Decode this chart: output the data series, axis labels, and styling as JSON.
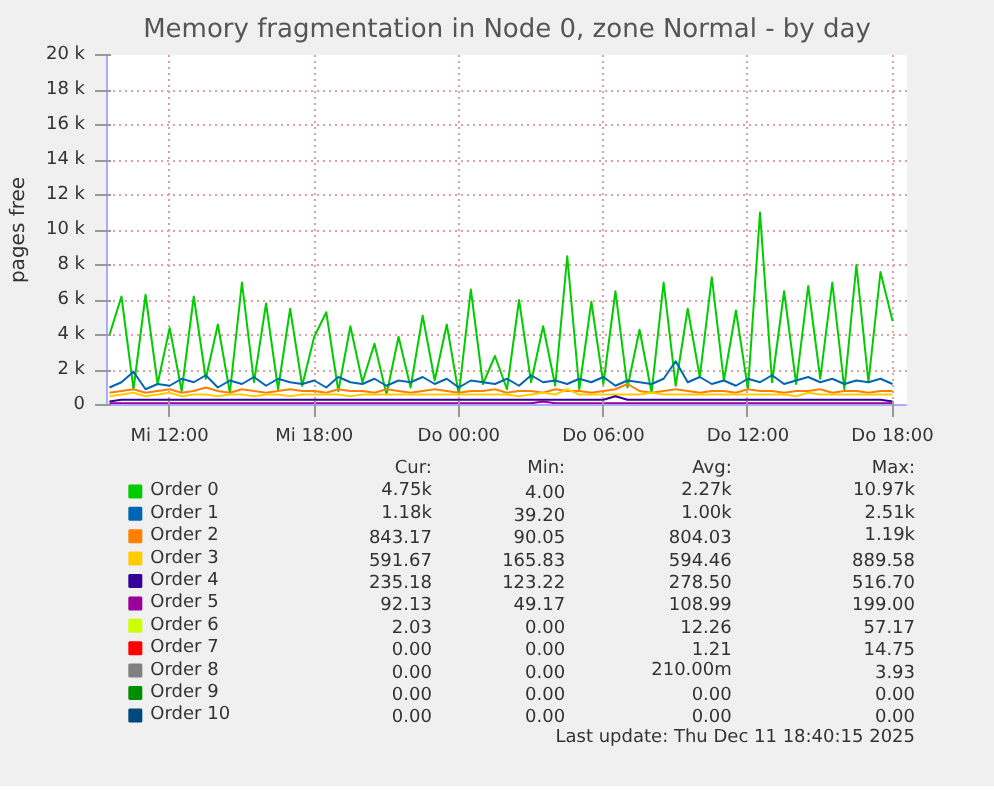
{
  "chart_data": {
    "type": "line",
    "title": "Memory fragmentation in Node 0, zone Normal - by day",
    "ylabel": "pages free",
    "x": [
      "2025-12-10T09:30",
      "2025-12-10T10:00",
      "2025-12-10T10:30",
      "2025-12-10T11:00",
      "2025-12-10T11:30",
      "2025-12-10T12:00",
      "2025-12-10T12:30",
      "2025-12-10T13:00",
      "2025-12-10T13:30",
      "2025-12-10T14:00",
      "2025-12-10T14:30",
      "2025-12-10T15:00",
      "2025-12-10T15:30",
      "2025-12-10T16:00",
      "2025-12-10T16:30",
      "2025-12-10T17:00",
      "2025-12-10T17:30",
      "2025-12-10T18:00",
      "2025-12-10T18:30",
      "2025-12-10T19:00",
      "2025-12-10T19:30",
      "2025-12-10T20:00",
      "2025-12-10T20:30",
      "2025-12-10T21:00",
      "2025-12-10T21:30",
      "2025-12-10T22:00",
      "2025-12-10T22:30",
      "2025-12-10T23:00",
      "2025-12-10T23:30",
      "2025-12-11T00:00",
      "2025-12-11T00:30",
      "2025-12-11T01:00",
      "2025-12-11T01:30",
      "2025-12-11T02:00",
      "2025-12-11T02:30",
      "2025-12-11T03:00",
      "2025-12-11T03:30",
      "2025-12-11T04:00",
      "2025-12-11T04:30",
      "2025-12-11T05:00",
      "2025-12-11T05:30",
      "2025-12-11T06:00",
      "2025-12-11T06:30",
      "2025-12-11T07:00",
      "2025-12-11T07:30",
      "2025-12-11T08:00",
      "2025-12-11T08:30",
      "2025-12-11T09:00",
      "2025-12-11T09:30",
      "2025-12-11T10:00",
      "2025-12-11T10:30",
      "2025-12-11T11:00",
      "2025-12-11T11:30",
      "2025-12-11T12:00",
      "2025-12-11T12:30",
      "2025-12-11T13:00",
      "2025-12-11T13:30",
      "2025-12-11T14:00",
      "2025-12-11T14:30",
      "2025-12-11T15:00",
      "2025-12-11T15:30",
      "2025-12-11T16:00",
      "2025-12-11T16:30",
      "2025-12-11T17:00",
      "2025-12-11T17:30",
      "2025-12-11T18:00"
    ],
    "xlim": [
      "2025-12-10T09:24",
      "2025-12-11T18:36"
    ],
    "ylim": [
      0,
      20000
    ],
    "xticks": [
      {
        "value": "2025-12-10T12:00",
        "label": "Mi 12:00"
      },
      {
        "value": "2025-12-10T18:00",
        "label": "Mi 18:00"
      },
      {
        "value": "2025-12-11T00:00",
        "label": "Do 00:00"
      },
      {
        "value": "2025-12-11T06:00",
        "label": "Do 06:00"
      },
      {
        "value": "2025-12-11T12:00",
        "label": "Do 12:00"
      },
      {
        "value": "2025-12-11T18:00",
        "label": "Do 18:00"
      }
    ],
    "yticks": [
      {
        "value": 0,
        "label": "0"
      },
      {
        "value": 2000,
        "label": "2 k"
      },
      {
        "value": 4000,
        "label": "4 k"
      },
      {
        "value": 6000,
        "label": "6 k"
      },
      {
        "value": 8000,
        "label": "8 k"
      },
      {
        "value": 10000,
        "label": "10 k"
      },
      {
        "value": 12000,
        "label": "12 k"
      },
      {
        "value": 14000,
        "label": "14 k"
      },
      {
        "value": 16000,
        "label": "16 k"
      },
      {
        "value": 18000,
        "label": "18 k"
      },
      {
        "value": 20000,
        "label": "20 k"
      }
    ],
    "grid": true,
    "legend": "bottom",
    "line_style": "solid",
    "marker": "none",
    "series": [
      {
        "name": "Order 0",
        "color": "#00cc00",
        "values": [
          4000,
          6200,
          900,
          6300,
          1200,
          4400,
          800,
          6200,
          1500,
          4600,
          700,
          7000,
          1300,
          5800,
          900,
          5500,
          1100,
          3900,
          5300,
          800,
          4500,
          1300,
          3500,
          600,
          3900,
          1000,
          5100,
          1400,
          4600,
          600,
          6600,
          1200,
          2800,
          900,
          6000,
          1300,
          4500,
          1100,
          8500,
          900,
          5900,
          1200,
          6500,
          1000,
          4300,
          700,
          7000,
          1100,
          5500,
          1600,
          7300,
          1400,
          5400,
          900,
          11000,
          1300,
          6500,
          1200,
          6800,
          1500,
          7000,
          900,
          8000,
          1300,
          7600,
          4800
        ]
      },
      {
        "name": "Order 1",
        "color": "#0066b3",
        "values": [
          1000,
          1300,
          1900,
          900,
          1200,
          1100,
          1500,
          1300,
          1700,
          1000,
          1400,
          1200,
          1600,
          1100,
          1500,
          1300,
          1200,
          1400,
          1000,
          1600,
          1300,
          1200,
          1500,
          1100,
          1400,
          1300,
          1600,
          1200,
          1500,
          1000,
          1400,
          1300,
          1200,
          1500,
          1100,
          1700,
          1300,
          1400,
          1200,
          1500,
          1300,
          1600,
          1100,
          1400,
          1300,
          1200,
          1500,
          2500,
          1300,
          1600,
          1200,
          1400,
          1100,
          1500,
          1300,
          1700,
          1200,
          1400,
          1600,
          1300,
          1500,
          1200,
          1400,
          1300,
          1500,
          1200
        ]
      },
      {
        "name": "Order 2",
        "color": "#ff8000",
        "values": [
          700,
          800,
          900,
          700,
          800,
          900,
          700,
          800,
          1000,
          800,
          700,
          900,
          800,
          700,
          800,
          900,
          800,
          800,
          700,
          900,
          800,
          800,
          700,
          900,
          800,
          700,
          800,
          900,
          800,
          700,
          800,
          800,
          900,
          700,
          800,
          800,
          700,
          900,
          800,
          800,
          700,
          800,
          900,
          1200,
          800,
          700,
          800,
          900,
          800,
          700,
          800,
          800,
          700,
          900,
          800,
          800,
          700,
          800,
          800,
          900,
          700,
          800,
          800,
          700,
          800,
          800
        ]
      },
      {
        "name": "Order 3",
        "color": "#ffcc00",
        "values": [
          500,
          600,
          700,
          500,
          600,
          700,
          500,
          600,
          600,
          500,
          600,
          600,
          500,
          600,
          600,
          500,
          600,
          600,
          600,
          600,
          500,
          600,
          600,
          600,
          600,
          600,
          600,
          600,
          600,
          600,
          600,
          600,
          600,
          600,
          500,
          600,
          700,
          600,
          900,
          600,
          600,
          600,
          600,
          600,
          600,
          700,
          600,
          600,
          600,
          600,
          600,
          600,
          600,
          600,
          600,
          600,
          600,
          500,
          700,
          600,
          600,
          600,
          600,
          600,
          600,
          600
        ]
      },
      {
        "name": "Order 4",
        "color": "#330099",
        "values": [
          200,
          300,
          300,
          300,
          300,
          300,
          300,
          300,
          300,
          300,
          300,
          300,
          300,
          300,
          300,
          300,
          300,
          300,
          300,
          300,
          300,
          300,
          300,
          300,
          300,
          300,
          300,
          300,
          300,
          300,
          300,
          300,
          300,
          300,
          300,
          300,
          300,
          300,
          300,
          300,
          300,
          300,
          500,
          300,
          300,
          300,
          300,
          300,
          300,
          300,
          300,
          300,
          300,
          300,
          300,
          300,
          300,
          300,
          300,
          300,
          300,
          300,
          300,
          300,
          300,
          200
        ]
      },
      {
        "name": "Order 5",
        "color": "#990099",
        "values": [
          100,
          100,
          100,
          100,
          100,
          100,
          100,
          100,
          100,
          100,
          100,
          100,
          100,
          100,
          100,
          100,
          100,
          100,
          100,
          100,
          100,
          100,
          100,
          100,
          100,
          100,
          100,
          100,
          100,
          100,
          100,
          100,
          100,
          100,
          100,
          100,
          200,
          100,
          100,
          100,
          100,
          100,
          100,
          100,
          100,
          100,
          100,
          100,
          100,
          100,
          100,
          100,
          100,
          100,
          100,
          100,
          100,
          100,
          100,
          100,
          100,
          100,
          100,
          100,
          100,
          100
        ]
      },
      {
        "name": "Order 6",
        "color": "#ccff00",
        "values": [
          null,
          null,
          null,
          null,
          null,
          null,
          null,
          null,
          null,
          null,
          null,
          null,
          null,
          null,
          null,
          null,
          null,
          null,
          null,
          null,
          null,
          null,
          null,
          null,
          null,
          null,
          null,
          null,
          null,
          null,
          null,
          null,
          null,
          null,
          null,
          null,
          null,
          null,
          null,
          null,
          null,
          null,
          null,
          null,
          null,
          null,
          null,
          null,
          null,
          null,
          null,
          null,
          null,
          null,
          null,
          null,
          null,
          null,
          null,
          null,
          null,
          null,
          null,
          null,
          null,
          null
        ]
      },
      {
        "name": "Order 7",
        "color": "#ff0000",
        "values": [
          null,
          null,
          null,
          null,
          null,
          null,
          null,
          null,
          null,
          null,
          null,
          null,
          null,
          null,
          null,
          null,
          null,
          null,
          null,
          null,
          null,
          null,
          null,
          null,
          null,
          null,
          null,
          null,
          null,
          null,
          null,
          null,
          null,
          null,
          null,
          null,
          null,
          null,
          null,
          null,
          null,
          null,
          null,
          null,
          null,
          null,
          null,
          null,
          null,
          null,
          null,
          null,
          null,
          null,
          null,
          null,
          null,
          null,
          null,
          null,
          null,
          null,
          null,
          null,
          null,
          null
        ]
      },
      {
        "name": "Order 8",
        "color": "#808080",
        "values": [
          null,
          null,
          null,
          null,
          null,
          null,
          null,
          null,
          null,
          null,
          null,
          null,
          null,
          null,
          null,
          null,
          null,
          null,
          null,
          null,
          null,
          null,
          null,
          null,
          null,
          null,
          null,
          null,
          null,
          null,
          null,
          null,
          null,
          null,
          null,
          null,
          null,
          null,
          null,
          null,
          null,
          null,
          null,
          null,
          null,
          null,
          null,
          null,
          null,
          null,
          null,
          null,
          null,
          null,
          null,
          null,
          null,
          null,
          null,
          null,
          null,
          null,
          null,
          null,
          null,
          null
        ]
      },
      {
        "name": "Order 9",
        "color": "#008f00",
        "values": [
          null,
          null,
          null,
          null,
          null,
          null,
          null,
          null,
          null,
          null,
          null,
          null,
          null,
          null,
          null,
          null,
          null,
          null,
          null,
          null,
          null,
          null,
          null,
          null,
          null,
          null,
          null,
          null,
          null,
          null,
          null,
          null,
          null,
          null,
          null,
          null,
          null,
          null,
          null,
          null,
          null,
          null,
          null,
          null,
          null,
          null,
          null,
          null,
          null,
          null,
          null,
          null,
          null,
          null,
          null,
          null,
          null,
          null,
          null,
          null,
          null,
          null,
          null,
          null,
          null,
          null
        ]
      },
      {
        "name": "Order 10",
        "color": "#00487d",
        "values": [
          null,
          null,
          null,
          null,
          null,
          null,
          null,
          null,
          null,
          null,
          null,
          null,
          null,
          null,
          null,
          null,
          null,
          null,
          null,
          null,
          null,
          null,
          null,
          null,
          null,
          null,
          null,
          null,
          null,
          null,
          null,
          null,
          null,
          null,
          null,
          null,
          null,
          null,
          null,
          null,
          null,
          null,
          null,
          null,
          null,
          null,
          null,
          null,
          null,
          null,
          null,
          null,
          null,
          null,
          null,
          null,
          null,
          null,
          null,
          null,
          null,
          null,
          null,
          null,
          null,
          null
        ]
      }
    ],
    "annotations": [
      "Cur: Min: Avg: Max:",
      "4.75k 4.00 2.27k 10.97k",
      "1.18k 39.20 1.00k 2.51k",
      "843.17 90.05 804.03 1.19k",
      "591.67 165.83 594.46 889.58",
      "235.18 123.22 278.50 516.70",
      "92.13 49.17 108.99 199.00",
      "2.03 0.00 12.26 57.17",
      "0.00 0.00 1.21 14.75",
      "0.00 0.00 210.00m 3.93",
      "0.00 0.00 0.00 0.00",
      "0.00 0.00 0.00 0.00",
      "Last update: Thu Dec 11 18:40:15 2025"
    ]
  }
}
